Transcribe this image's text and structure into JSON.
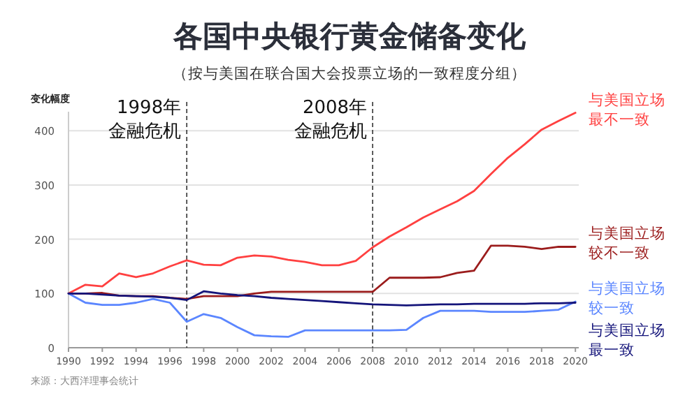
{
  "chart_data": {
    "type": "line",
    "title": "各国中央银行黄金储备变化",
    "subtitle": "（按与美国在联合国大会投票立场的一致程度分组）",
    "ylabel": "变化幅度",
    "x": [
      1990,
      1991,
      1992,
      1993,
      1994,
      1995,
      1996,
      1997,
      1998,
      1999,
      2000,
      2001,
      2002,
      2003,
      2004,
      2005,
      2006,
      2007,
      2008,
      2009,
      2010,
      2011,
      2012,
      2013,
      2014,
      2015,
      2016,
      2017,
      2018,
      2019,
      2020
    ],
    "series": [
      {
        "name": "与美国立场最不一致",
        "color": "#ff4040",
        "values": [
          100,
          116,
          113,
          137,
          130,
          137,
          150,
          161,
          153,
          152,
          166,
          170,
          168,
          162,
          158,
          152,
          152,
          160,
          185,
          205,
          222,
          240,
          255,
          270,
          289,
          320,
          350,
          375,
          402,
          418,
          433
        ]
      },
      {
        "name": "与美国立场较不一致",
        "color": "#9b1c1c",
        "values": [
          100,
          100,
          101,
          96,
          95,
          95,
          92,
          90,
          95,
          95,
          95,
          100,
          103,
          103,
          103,
          103,
          103,
          103,
          103,
          129,
          129,
          129,
          130,
          138,
          142,
          188,
          188,
          186,
          182,
          186,
          186
        ]
      },
      {
        "name": "与美国立场较一致",
        "color": "#5b86ff",
        "values": [
          100,
          83,
          79,
          79,
          83,
          90,
          83,
          48,
          62,
          55,
          38,
          23,
          21,
          20,
          32,
          32,
          32,
          32,
          32,
          32,
          33,
          55,
          68,
          68,
          68,
          66,
          66,
          66,
          68,
          70,
          85
        ]
      },
      {
        "name": "与美国立场最一致",
        "color": "#14147a",
        "values": [
          100,
          100,
          98,
          96,
          95,
          94,
          92,
          88,
          104,
          100,
          97,
          95,
          92,
          90,
          88,
          86,
          84,
          82,
          80,
          79,
          78,
          79,
          80,
          80,
          81,
          81,
          81,
          81,
          82,
          82,
          83
        ]
      }
    ],
    "xlim": [
      1990,
      2020.2
    ],
    "xticks": [
      1990,
      1992,
      1994,
      1996,
      1998,
      2000,
      2002,
      2004,
      2006,
      2008,
      2010,
      2012,
      2014,
      2016,
      2018,
      2020
    ],
    "ylim": [
      0,
      435
    ],
    "yticks": [
      0,
      100,
      200,
      300,
      400
    ],
    "grid": "y",
    "ref_lines": [
      {
        "axis": "x",
        "value": 1997,
        "label": "1998年金融危机",
        "line_style": "dashed",
        "color": "#333333"
      },
      {
        "axis": "x",
        "value": 2008,
        "label": "2008年金融危机",
        "line_style": "dashed",
        "color": "#333333"
      }
    ],
    "annotations": [
      "来源：大西洋理事会统计"
    ]
  }
}
